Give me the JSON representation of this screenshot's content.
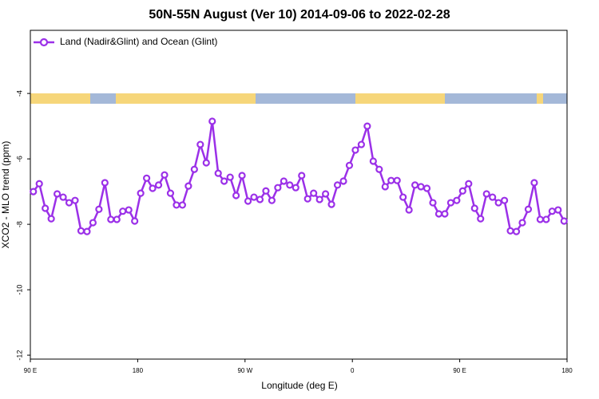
{
  "chart_data": {
    "type": "line",
    "title": "50N-55N August (Ver 10)   2014-09-06 to 2022-02-28",
    "x_label": "Longitude (deg E)",
    "y_label": "XCO2 - MLO trend (ppm)",
    "x": [
      92.5,
      97.5,
      102.5,
      107.5,
      112.5,
      117.5,
      122.5,
      127.5,
      132.5,
      137.5,
      142.5,
      147.5,
      152.5,
      157.5,
      162.5,
      167.5,
      172.5,
      177.5,
      182.5,
      187.5,
      192.5,
      197.5,
      202.5,
      207.5,
      212.5,
      217.5,
      222.5,
      227.5,
      232.5,
      237.5,
      242.5,
      247.5,
      252.5,
      257.5,
      262.5,
      267.5,
      272.5,
      277.5,
      282.5,
      287.5,
      292.5,
      297.5,
      302.5,
      307.5,
      312.5,
      317.5,
      322.5,
      327.5,
      332.5,
      337.5,
      342.5,
      347.5,
      352.5,
      357.5,
      362.5,
      367.5,
      372.5,
      377.5,
      382.5,
      387.5,
      392.5,
      397.5,
      402.5,
      407.5,
      412.5,
      417.5,
      422.5,
      427.5,
      432.5,
      437.5,
      442.5,
      447.5,
      452.5,
      457.5,
      462.5,
      467.5,
      472.5,
      477.5,
      482.5,
      487.5,
      492.5,
      497.5,
      502.5,
      507.5,
      512.5,
      517.5,
      522.5,
      527.5,
      532.5,
      537.5
    ],
    "series": [
      {
        "name": "Land (Nadir&Glint) and Ocean (Glint)",
        "color": "#9b30e8",
        "values": [
          -7.0,
          -6.76,
          -7.51,
          -7.83,
          -7.07,
          -7.17,
          -7.34,
          -7.27,
          -8.2,
          -8.22,
          -7.95,
          -7.54,
          -6.73,
          -7.85,
          -7.85,
          -7.6,
          -7.56,
          -7.9,
          -7.05,
          -6.59,
          -6.9,
          -6.8,
          -6.49,
          -7.05,
          -7.41,
          -7.41,
          -6.83,
          -6.32,
          -5.56,
          -6.12,
          -4.85,
          -6.44,
          -6.68,
          -6.56,
          -7.12,
          -6.51,
          -7.29,
          -7.17,
          -7.24,
          -6.98,
          -7.27,
          -6.88,
          -6.68,
          -6.8,
          -6.88,
          -6.51,
          -7.22,
          -7.05,
          -7.24,
          -7.07,
          -7.39,
          -6.8,
          -6.68,
          -6.2,
          -5.73,
          -5.56,
          -5.0,
          -6.07,
          -6.32,
          -6.85,
          -6.66,
          -6.66,
          -7.17,
          -7.56,
          -6.8,
          -6.85,
          -6.9,
          -7.34,
          -7.68,
          -7.68,
          -7.34,
          -7.27,
          -6.98,
          -6.76,
          -7.51,
          -7.83,
          -7.07,
          -7.17,
          -7.34,
          -7.27,
          -8.2,
          -8.22,
          -7.95,
          -7.54,
          -6.73,
          -7.85,
          -7.85,
          -7.6,
          -7.56,
          -7.9
        ]
      }
    ],
    "xlim": [
      90,
      540
    ],
    "xticks": [
      {
        "value": 90,
        "label": "90 E"
      },
      180,
      {
        "value": 270,
        "label": "90 W"
      },
      {
        "value": 360,
        "label": "0"
      },
      {
        "value": 450,
        "label": "90 E"
      },
      180
    ],
    "ylim": [
      -12.12,
      -2.07
    ],
    "yticks": [
      -12,
      -10,
      -8,
      -6,
      -4
    ],
    "legend": "upper left"
  }
}
